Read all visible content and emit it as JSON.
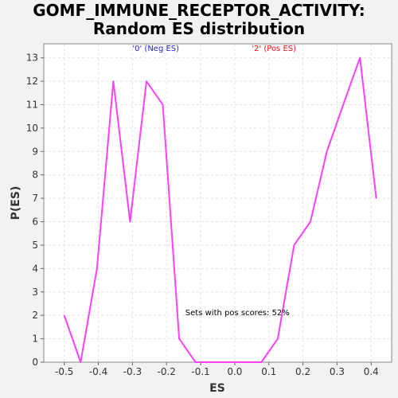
{
  "chart_data": {
    "type": "line",
    "title_line1": "GOMF_IMMUNE_RECEPTOR_ACTIVITY:",
    "title_line2": "Random ES distribution",
    "xlabel": "ES",
    "ylabel": "P(ES)",
    "xlim": [
      -0.56,
      0.46
    ],
    "ylim": [
      0,
      13.6
    ],
    "x_ticks": [
      -0.5,
      -0.4,
      -0.3,
      -0.2,
      -0.1,
      0.0,
      0.1,
      0.2,
      0.3,
      0.4
    ],
    "x_tick_labels": [
      "-0.5",
      "-0.4",
      "-0.3",
      "-0.2",
      "-0.1",
      "0.0",
      "0.1",
      "0.2",
      "0.3",
      "0.4"
    ],
    "y_ticks": [
      0,
      1,
      2,
      3,
      4,
      5,
      6,
      7,
      8,
      9,
      10,
      11,
      12,
      13
    ],
    "y_tick_labels": [
      "0",
      "1",
      "2",
      "3",
      "4",
      "5",
      "6",
      "7",
      "8",
      "9",
      "10",
      "11",
      "12",
      "13"
    ],
    "grid": true,
    "series": [
      {
        "color": "#ff40ff",
        "x": [
          -0.5,
          -0.452,
          -0.404,
          -0.356,
          -0.307,
          -0.259,
          -0.211,
          -0.163,
          -0.115,
          -0.067,
          -0.019,
          0.03,
          0.078,
          0.126,
          0.174,
          0.222,
          0.27,
          0.318,
          0.367,
          0.415
        ],
        "y": [
          2,
          0,
          4,
          12,
          6,
          12,
          11,
          1,
          0,
          0,
          0,
          0,
          0,
          1,
          5,
          6,
          9,
          11,
          13,
          7
        ]
      }
    ],
    "annotations": [
      {
        "text": "'0' (Neg ES)",
        "color": "#2222cc",
        "x": -0.3,
        "y": 13.3
      },
      {
        "text": "'2' (Pos ES)",
        "color": "#ee1111",
        "x": 0.05,
        "y": 13.3
      },
      {
        "text": "Sets with pos scores: 52%",
        "color": "#000000",
        "x": -0.145,
        "y": 2
      }
    ],
    "plot_background": "#ffffff",
    "page_background": "#f2f2f2"
  }
}
